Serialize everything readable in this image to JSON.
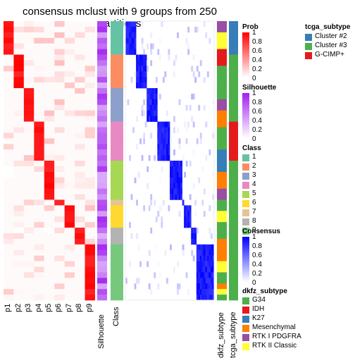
{
  "title": "consensus mclust with 9 groups from 250 partitions",
  "colors": {
    "prob_high": "#ff0000",
    "silhouette_high": "#a020f0",
    "consensus_high": "#0000ff",
    "class": [
      "#66C2A5",
      "#FC8D62",
      "#8DA0CB",
      "#E78AC3",
      "#A6D854",
      "#FFD92F",
      "#E5C494",
      "#B3B3B3",
      "#77C87D"
    ],
    "tcga": {
      "Cluster #2": "#377EB8",
      "Cluster #3": "#4DAF4A",
      "G-CIMP+": "#E41A1C"
    },
    "dkfz": {
      "G34": "#4DAF4A",
      "IDH": "#E41A1C",
      "K27": "#377EB8",
      "Mesenchymal": "#FF7F00",
      "RTK I PDGFRA": "#984EA3",
      "RTK II Classic": "#FFFF33"
    }
  },
  "chart_data": {
    "type": "heatmap",
    "title": "consensus mclust with 9 groups from 250 partitions",
    "prob_columns": [
      "p1",
      "p2",
      "p3",
      "p4",
      "p5",
      "p6",
      "p7",
      "p8",
      "p9"
    ],
    "other_columns": [
      "Silhouette",
      "Class"
    ],
    "annotation_columns": [
      "dkfz_subtype",
      "tcga_subtype"
    ],
    "groups": [
      {
        "class": 1,
        "size": 6
      },
      {
        "class": 2,
        "size": 6
      },
      {
        "class": 3,
        "size": 6
      },
      {
        "class": 4,
        "size": 7
      },
      {
        "class": 5,
        "size": 7
      },
      {
        "class": 7,
        "size": 1
      },
      {
        "class": 6,
        "size": 4
      },
      {
        "class": 8,
        "size": 3
      },
      {
        "class": 9,
        "size": 10
      }
    ],
    "prob_legend": {
      "title": "Prob",
      "ticks": [
        "1",
        "0.8",
        "0.6",
        "0.4",
        "0.2",
        "0"
      ]
    },
    "silhouette_legend": {
      "title": "Silhouette",
      "ticks": [
        "1",
        "0.8",
        "0.6",
        "0.4",
        "0.2",
        "0"
      ]
    },
    "class_legend": {
      "title": "Class",
      "items": [
        "1",
        "2",
        "3",
        "4",
        "5",
        "6",
        "7",
        "8",
        "9"
      ]
    },
    "consensus_legend": {
      "title": "Consensus",
      "ticks": [
        "1",
        "0.8",
        "0.6",
        "0.4",
        "0.2",
        "0"
      ]
    },
    "dkfz_legend": {
      "title": "dkfz_subtype",
      "items": [
        "G34",
        "IDH",
        "K27",
        "Mesenchymal",
        "RTK I PDGFRA",
        "RTK II Classic"
      ]
    },
    "tcga_legend": {
      "title": "tcga_subtype",
      "items": [
        "Cluster #2",
        "Cluster #3",
        "G-CIMP+"
      ]
    }
  }
}
